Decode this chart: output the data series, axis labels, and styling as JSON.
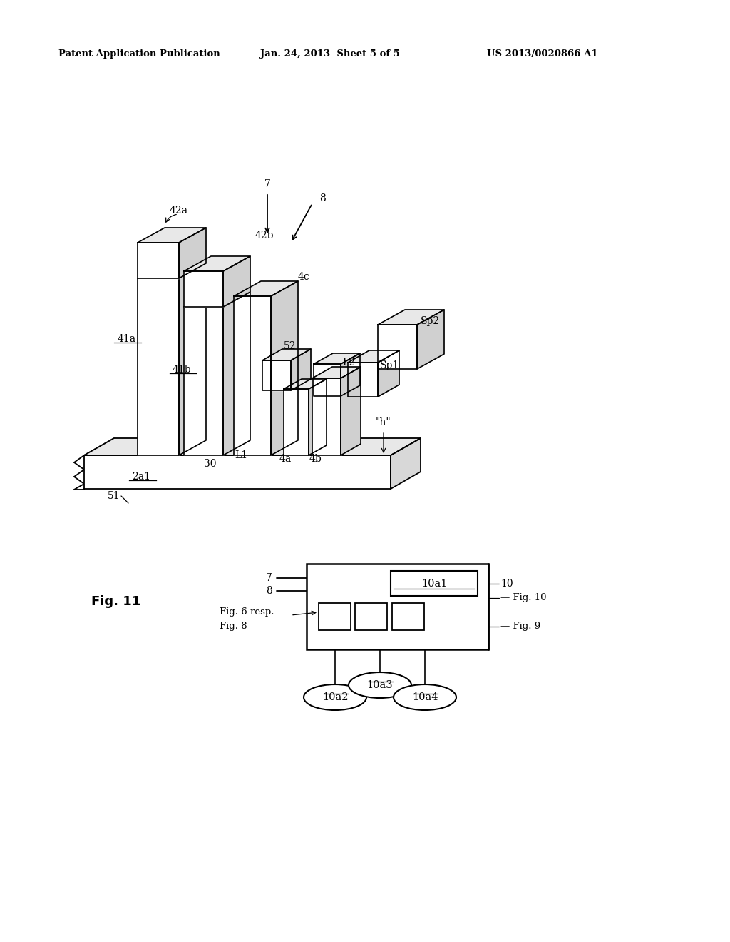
{
  "background_color": "#ffffff",
  "header_text": "Patent Application Publication",
  "header_date": "Jan. 24, 2013  Sheet 5 of 5",
  "header_patent": "US 2013/0020866 A1",
  "fig_label": "Fig. 11"
}
